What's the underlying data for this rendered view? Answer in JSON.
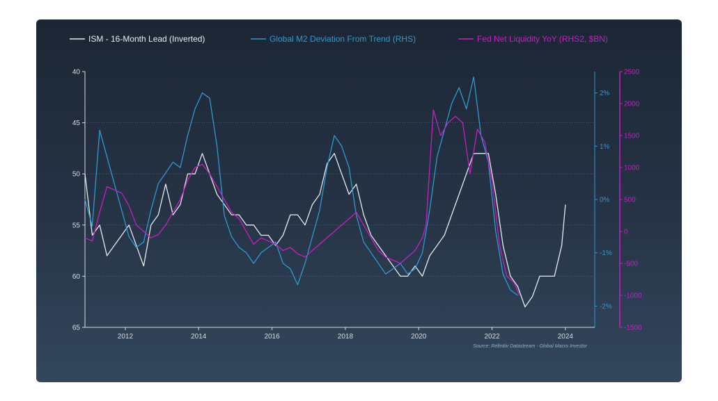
{
  "chart_data": {
    "type": "line",
    "title": "",
    "source": "Source: Refinitiv Datastream - Global Macro Investor",
    "x_ticks": [
      "2012",
      "2014",
      "2016",
      "2018",
      "2020",
      "2022",
      "2024"
    ],
    "xlim": [
      2010.9,
      2024.8
    ],
    "axes": {
      "left": {
        "ylim": [
          40,
          65
        ],
        "inverted": true,
        "ticks": [
          "40",
          "45",
          "50",
          "55",
          "60",
          "65"
        ],
        "color": "#d8dde3"
      },
      "right1": {
        "ylim": [
          -2.4,
          2.4
        ],
        "ticks": [
          "2%",
          "1%",
          "0%",
          "-1%",
          "-2%"
        ],
        "tick_values": [
          2,
          1,
          0,
          -1,
          -2
        ],
        "color": "#2e9ad0"
      },
      "right2": {
        "ylim": [
          -1500,
          2500
        ],
        "ticks": [
          "2500",
          "2000",
          "1500",
          "1000",
          "500",
          "0",
          "-500",
          "-1000",
          "-1500"
        ],
        "tick_values": [
          2500,
          2000,
          1500,
          1000,
          500,
          0,
          -500,
          -1000,
          -1500
        ],
        "color": "#c61ec6"
      }
    },
    "gridlines": "horizontal, left axis",
    "legend_position": "top",
    "series": [
      {
        "name": "ISM - 16-Month Lead (Inverted)",
        "axis": "left",
        "color": "#e8ecf0",
        "x": [
          2010.9,
          2011.1,
          2011.3,
          2011.5,
          2011.7,
          2011.9,
          2012.1,
          2012.3,
          2012.5,
          2012.7,
          2012.9,
          2013.1,
          2013.3,
          2013.5,
          2013.7,
          2013.9,
          2014.1,
          2014.3,
          2014.5,
          2014.7,
          2014.9,
          2015.1,
          2015.3,
          2015.5,
          2015.7,
          2015.9,
          2016.1,
          2016.3,
          2016.5,
          2016.7,
          2016.9,
          2017.1,
          2017.3,
          2017.5,
          2017.7,
          2017.9,
          2018.1,
          2018.3,
          2018.5,
          2018.7,
          2018.9,
          2019.1,
          2019.3,
          2019.5,
          2019.7,
          2019.9,
          2020.1,
          2020.3,
          2020.5,
          2020.7,
          2020.9,
          2021.1,
          2021.3,
          2021.5,
          2021.7,
          2021.9,
          2022.1,
          2022.3,
          2022.5,
          2022.7,
          2022.9,
          2023.1,
          2023.3,
          2023.5,
          2023.7,
          2023.9,
          2024.0
        ],
        "values": [
          50,
          56,
          55,
          58,
          57,
          56,
          55,
          57,
          59,
          55,
          54,
          51,
          54,
          53,
          50,
          50,
          48,
          50,
          52,
          53,
          54,
          54,
          55,
          55,
          56,
          56,
          57,
          56,
          54,
          54,
          55,
          53,
          52,
          49,
          48,
          50,
          52,
          51,
          54,
          56,
          57,
          58,
          59,
          60,
          60,
          59,
          60,
          58,
          57,
          56,
          54,
          52,
          50,
          48,
          48,
          48,
          52,
          57,
          60,
          61,
          63,
          62,
          60,
          60,
          60,
          57,
          53
        ]
      },
      {
        "name": "Global M2 Deviation From Trend (RHS)",
        "axis": "right1",
        "color": "#2e9ad0",
        "x": [
          2010.9,
          2011.1,
          2011.3,
          2011.5,
          2011.7,
          2011.9,
          2012.1,
          2012.3,
          2012.5,
          2012.7,
          2012.9,
          2013.1,
          2013.3,
          2013.5,
          2013.7,
          2013.9,
          2014.1,
          2014.3,
          2014.5,
          2014.7,
          2014.9,
          2015.1,
          2015.3,
          2015.5,
          2015.7,
          2015.9,
          2016.1,
          2016.3,
          2016.5,
          2016.7,
          2016.9,
          2017.1,
          2017.3,
          2017.5,
          2017.7,
          2017.9,
          2018.1,
          2018.3,
          2018.5,
          2018.7,
          2018.9,
          2019.1,
          2019.3,
          2019.5,
          2019.7,
          2019.9,
          2020.1,
          2020.3,
          2020.5,
          2020.7,
          2020.9,
          2021.1,
          2021.3,
          2021.5,
          2021.7,
          2021.9,
          2022.1,
          2022.3,
          2022.5,
          2022.7
        ],
        "values": [
          0,
          -0.5,
          1.3,
          0.8,
          0.3,
          -0.2,
          -0.7,
          -0.9,
          -0.8,
          -0.2,
          0.3,
          0.5,
          0.7,
          0.6,
          1.2,
          1.7,
          2.0,
          1.9,
          1.0,
          -0.3,
          -0.7,
          -0.9,
          -1.0,
          -1.2,
          -1.0,
          -0.9,
          -0.8,
          -1.2,
          -1.3,
          -1.6,
          -1.2,
          -0.7,
          -0.2,
          0.6,
          1.2,
          1.0,
          0.6,
          -0.3,
          -0.8,
          -1.0,
          -1.2,
          -1.4,
          -1.3,
          -1.2,
          -1.4,
          -1.3,
          -1.0,
          -0.2,
          0.8,
          1.3,
          1.8,
          2.1,
          1.7,
          2.3,
          1.2,
          0.7,
          -0.6,
          -1.4,
          -1.7,
          -1.8
        ]
      },
      {
        "name": "Fed Net Liquidity YoY (RHS2, $BN)",
        "axis": "right2",
        "color": "#c61ec6",
        "x": [
          2010.9,
          2011.1,
          2011.3,
          2011.5,
          2011.7,
          2011.9,
          2012.1,
          2012.3,
          2012.5,
          2012.7,
          2012.9,
          2013.1,
          2013.3,
          2013.5,
          2013.7,
          2013.9,
          2014.1,
          2014.3,
          2014.5,
          2014.7,
          2014.9,
          2015.1,
          2015.3,
          2015.5,
          2015.7,
          2015.9,
          2016.1,
          2016.3,
          2016.5,
          2016.7,
          2016.9,
          2017.1,
          2017.3,
          2017.5,
          2017.7,
          2017.9,
          2018.1,
          2018.3,
          2018.5,
          2018.7,
          2018.9,
          2019.1,
          2019.3,
          2019.5,
          2019.7,
          2019.9,
          2020.1,
          2020.2,
          2020.4,
          2020.6,
          2020.8,
          2021.0,
          2021.2,
          2021.4,
          2021.6,
          2021.8,
          2022.0,
          2022.2,
          2022.4,
          2022.6,
          2022.75
        ],
        "values": [
          -100,
          -150,
          300,
          700,
          650,
          600,
          400,
          100,
          0,
          -100,
          -50,
          100,
          300,
          500,
          800,
          1000,
          1050,
          900,
          700,
          500,
          300,
          200,
          0,
          -200,
          -100,
          -150,
          -200,
          -300,
          -250,
          -350,
          -400,
          -300,
          -200,
          -100,
          0,
          100,
          200,
          300,
          100,
          -100,
          -300,
          -400,
          -450,
          -500,
          -400,
          -300,
          -100,
          100,
          1900,
          1500,
          1700,
          1800,
          1700,
          900,
          1600,
          1400,
          800,
          -200,
          -700,
          -800,
          -1000
        ]
      }
    ]
  }
}
